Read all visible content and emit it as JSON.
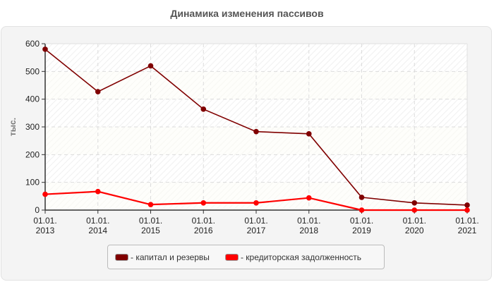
{
  "title": "Динамика изменения пассивов",
  "y_axis_label": "тыс.",
  "legend": [
    {
      "label": "- капитал и резервы",
      "color": "#800000"
    },
    {
      "label": "- кредиторская задолженность",
      "color": "#ff0000"
    }
  ],
  "chart_data": {
    "type": "line",
    "title": "Динамика изменения пассивов",
    "xlabel": "",
    "ylabel": "тыс.",
    "categories": [
      "01.01.2013",
      "01.01.2014",
      "01.01.2015",
      "01.01.2016",
      "01.01.2017",
      "01.01.2018",
      "01.01.2019",
      "01.01.2020",
      "01.01.2021"
    ],
    "x_tick_lines": [
      [
        "01.01.",
        "2013"
      ],
      [
        "01.01.",
        "2014"
      ],
      [
        "01.01.",
        "2015"
      ],
      [
        "01.01.",
        "2016"
      ],
      [
        "01.01.",
        "2017"
      ],
      [
        "01.01.",
        "2018"
      ],
      [
        "01.01.",
        "2019"
      ],
      [
        "01.01.",
        "2020"
      ],
      [
        "01.01.",
        "2021"
      ]
    ],
    "y_ticks": [
      0,
      100,
      200,
      300,
      400,
      500,
      600
    ],
    "ylim": [
      0,
      600
    ],
    "grid": true,
    "legend_position": "bottom",
    "series": [
      {
        "name": "капитал и резервы",
        "color": "#800000",
        "values": [
          580,
          427,
          520,
          364,
          283,
          275,
          46,
          26,
          18
        ]
      },
      {
        "name": "кредиторская задолженность",
        "color": "#ff0000",
        "values": [
          57,
          67,
          20,
          26,
          26,
          44,
          0,
          0,
          0
        ]
      }
    ]
  }
}
